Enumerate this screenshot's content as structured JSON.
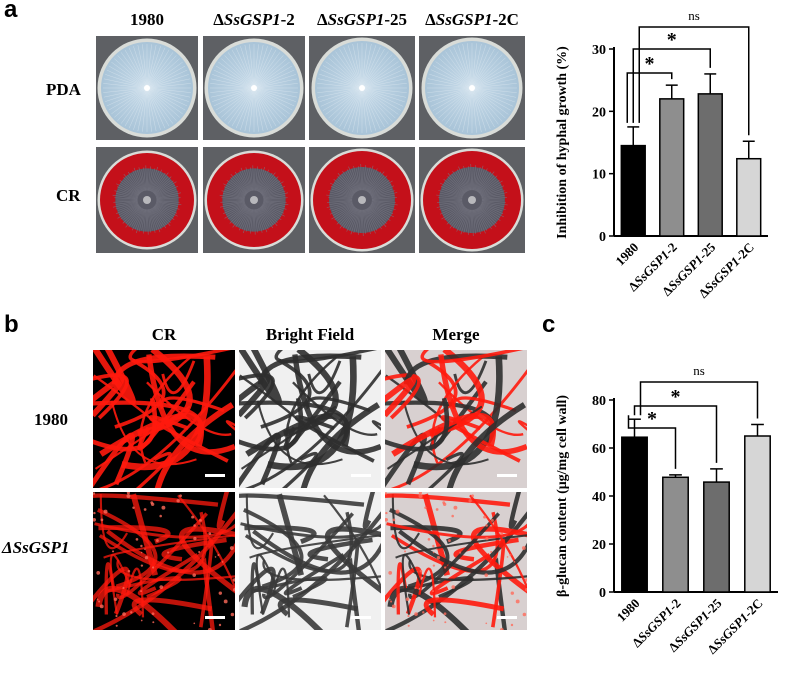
{
  "panels": {
    "a": "a",
    "b": "b",
    "c": "c"
  },
  "panel_a": {
    "columns": [
      "1980",
      "ΔSsGSP1-2",
      "ΔSsGSP1-25",
      "ΔSsGSP1-2C"
    ],
    "rows": [
      "PDA",
      "CR"
    ],
    "colors": {
      "pda_plate": "#a9c4d8",
      "cr_medium": "#c4101a",
      "colony": "#5a5a66",
      "photo_bg": "#5e6064"
    }
  },
  "panel_b": {
    "columns": [
      "CR",
      "Bright Field",
      "Merge"
    ],
    "rows": [
      "1980",
      "ΔSsGSP1"
    ],
    "colors": {
      "cr_signal": "#ff1a0d",
      "bf": "#8c8c8c"
    }
  },
  "chart_data": [
    {
      "type": "bar",
      "categories": [
        "1980",
        "ΔSsGSP1-2",
        "ΔSsGSP1-25",
        "ΔSsGSP1-2C"
      ],
      "values": [
        14.5,
        22.0,
        22.8,
        12.4
      ],
      "errors": [
        3.0,
        2.2,
        3.2,
        2.8
      ],
      "colors": [
        "#000000",
        "#8e8e8e",
        "#6d6d6d",
        "#d6d6d6"
      ],
      "title": "",
      "xlabel": "",
      "ylabel": "Inhibition of hyphal growth (%)",
      "ylim": [
        0,
        30
      ],
      "yticks": [
        "0",
        "10",
        "20",
        "30"
      ],
      "significance": [
        {
          "from": "1980",
          "to": "ΔSsGSP1-2",
          "label": "*"
        },
        {
          "from": "1980",
          "to": "ΔSsGSP1-25",
          "label": "*"
        },
        {
          "from": "1980",
          "to": "ΔSsGSP1-2C",
          "label": "ns"
        }
      ]
    },
    {
      "type": "bar",
      "categories": [
        "1980",
        "ΔSsGSP1-2",
        "ΔSsGSP1-25",
        "ΔSsGSP1-2C"
      ],
      "values": [
        64.5,
        47.8,
        45.8,
        65.0
      ],
      "errors": [
        7.5,
        1.0,
        5.5,
        4.8
      ],
      "colors": [
        "#000000",
        "#8e8e8e",
        "#6d6d6d",
        "#d6d6d6"
      ],
      "title": "",
      "xlabel": "",
      "ylabel": "β-glucan content (μg/mg cell wall)",
      "ylim": [
        0,
        80
      ],
      "yticks": [
        "0",
        "20",
        "40",
        "60",
        "80"
      ],
      "significance": [
        {
          "from": "1980",
          "to": "ΔSsGSP1-2",
          "label": "*"
        },
        {
          "from": "1980",
          "to": "ΔSsGSP1-25",
          "label": "*"
        },
        {
          "from": "1980",
          "to": "ΔSsGSP1-2C",
          "label": "ns"
        }
      ]
    }
  ]
}
